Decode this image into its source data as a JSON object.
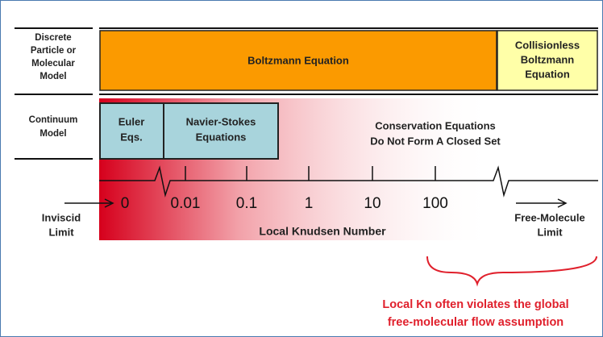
{
  "rows": [
    {
      "label": [
        "Discrete",
        "Particle or",
        "Molecular",
        "Model"
      ]
    },
    {
      "label": [
        "Continuum",
        "Model"
      ]
    }
  ],
  "boxes": {
    "boltzmann": "Boltzmann Equation",
    "collisionless": [
      "Collisionless",
      "Boltzmann",
      "Equation"
    ],
    "euler": [
      "Euler",
      "Eqs."
    ],
    "navier_stokes": [
      "Navier-Stokes",
      "Equations"
    ]
  },
  "conservation": [
    "Conservation Equations",
    "Do Not Form A Closed Set"
  ],
  "axis": {
    "ticks": [
      "0",
      "0.01",
      "0.1",
      "1",
      "10",
      "100"
    ],
    "title": "Local Knudsen Number",
    "left": [
      "Inviscid",
      "Limit"
    ],
    "right": [
      "Free-Molecule",
      "Limit"
    ]
  },
  "note": [
    "Local Kn often violates the global",
    "free-molecular flow assumption"
  ]
}
